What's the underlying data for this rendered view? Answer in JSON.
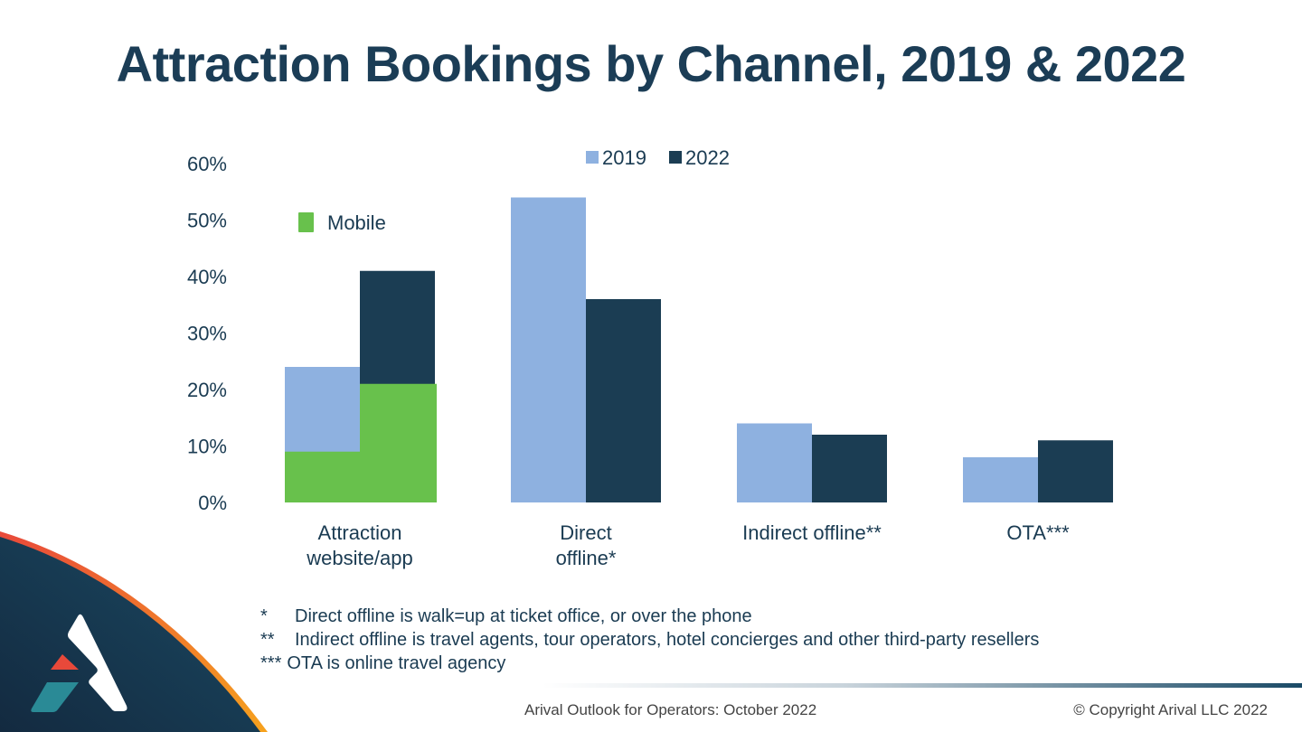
{
  "title": "Attraction Bookings by Channel, 2019 & 2022",
  "colors": {
    "series_2019": "#8eb1e0",
    "series_2022": "#1b3d53",
    "mobile": "#68c14c",
    "text": "#1a3b52",
    "accent_orange": "#f28a1e",
    "logo_red": "#e8493a",
    "logo_teal": "#2a8a96"
  },
  "chart_data": {
    "type": "bar",
    "title": "Attraction Bookings by Channel, 2019 & 2022",
    "xlabel": "",
    "ylabel": "",
    "ylim": [
      0,
      60
    ],
    "yticks": [
      0,
      10,
      20,
      30,
      40,
      50,
      60
    ],
    "ytick_labels": [
      "0%",
      "10%",
      "20%",
      "30%",
      "40%",
      "50%",
      "60%"
    ],
    "grid": false,
    "categories": [
      [
        "Attraction",
        "website/app"
      ],
      [
        "Direct",
        "offline*"
      ],
      [
        "Indirect offline**"
      ],
      [
        "OTA***"
      ]
    ],
    "series": [
      {
        "name": "2019",
        "values": [
          24,
          54,
          14,
          8
        ]
      },
      {
        "name": "2022",
        "values": [
          41,
          36,
          12,
          11
        ]
      }
    ],
    "overlay": {
      "name": "Mobile",
      "category": "Attraction website/app",
      "values": {
        "2019": 9,
        "2022": 21
      }
    },
    "legend": {
      "entries": [
        "2019",
        "2022"
      ],
      "placement": "top-center"
    },
    "overlay_legend": {
      "entry": "Mobile",
      "placement": "top-left"
    }
  },
  "footnotes": [
    {
      "mark": "*",
      "text": "Direct offline is walk=up at ticket office, or over the phone"
    },
    {
      "mark": "**",
      "text": "Indirect offline is travel agents, tour operators, hotel concierges and other third-party resellers"
    },
    {
      "mark": "***",
      "text": "OTA is online travel agency"
    }
  ],
  "footer": {
    "left": "Arival Outlook for Operators: October 2022",
    "right": "© Copyright Arival LLC 2022"
  },
  "logo": {
    "icon": "arival-logo-icon"
  }
}
